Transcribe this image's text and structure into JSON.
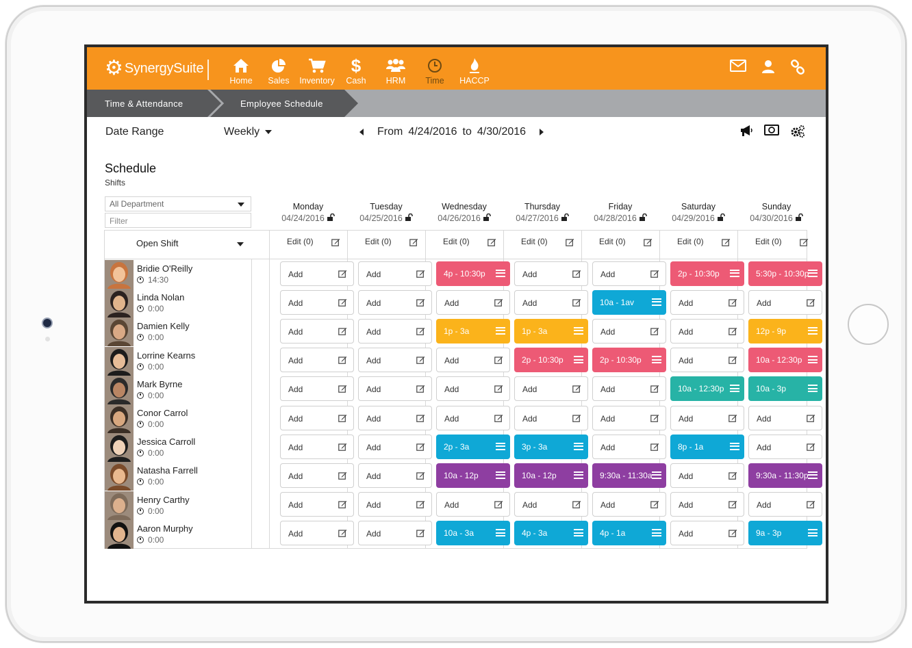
{
  "app": {
    "brand": "SynergySuite",
    "nav": [
      {
        "label": "Home",
        "icon": "home-icon"
      },
      {
        "label": "Sales",
        "icon": "pie-chart-icon"
      },
      {
        "label": "Inventory",
        "icon": "cart-icon"
      },
      {
        "label": "Cash",
        "icon": "dollar-icon"
      },
      {
        "label": "HRM",
        "icon": "users-icon"
      },
      {
        "label": "Time",
        "icon": "clock-icon",
        "active": true
      },
      {
        "label": "HACCP",
        "icon": "flame-icon"
      }
    ],
    "top_right_icons": [
      "mail-icon",
      "user-icon",
      "link-icon"
    ]
  },
  "breadcrumb": [
    "Time & Attendance",
    "Employee Schedule"
  ],
  "toolbar": {
    "date_range_label": "Date Range",
    "range_mode": "Weekly",
    "from_label": "From",
    "from_date": "4/24/2016",
    "to_label": "to",
    "to_date": "4/30/2016",
    "icons": [
      "megaphone-icon",
      "money-icon",
      "settings-icon"
    ]
  },
  "schedule": {
    "title": "Schedule",
    "subtitle": "Shifts",
    "department": "All Department",
    "filter_placeholder": "Filter",
    "open_shift_label": "Open Shift",
    "edit_label": "Edit (0)",
    "add_label": "Add",
    "days": [
      {
        "name": "Monday",
        "date": "04/24/2016"
      },
      {
        "name": "Tuesday",
        "date": "04/25/2016"
      },
      {
        "name": "Wednesday",
        "date": "04/26/2016"
      },
      {
        "name": "Thursday",
        "date": "04/27/2016"
      },
      {
        "name": "Friday",
        "date": "04/28/2016"
      },
      {
        "name": "Saturday",
        "date": "04/29/2016"
      },
      {
        "name": "Sunday",
        "date": "04/30/2016"
      }
    ],
    "colors": {
      "pink": "#ed5a75",
      "yellow": "#fbb31b",
      "blue": "#0fa8d6",
      "teal": "#27b3a6",
      "purple": "#8e3ea1"
    },
    "employees": [
      {
        "name": "Bridie O'Reilly",
        "hours": "14:30",
        "shifts": [
          null,
          null,
          {
            "t": "4p - 10:30p",
            "c": "pink"
          },
          null,
          null,
          {
            "t": "2p - 10:30p",
            "c": "pink"
          },
          {
            "t": "5:30p - 10:30p",
            "c": "pink"
          }
        ]
      },
      {
        "name": "Linda Nolan",
        "hours": "0:00",
        "shifts": [
          null,
          null,
          null,
          null,
          {
            "t": "10a - 1av",
            "c": "blue"
          },
          null,
          null
        ]
      },
      {
        "name": "Damien Kelly",
        "hours": "0:00",
        "shifts": [
          null,
          null,
          {
            "t": "1p - 3a",
            "c": "yellow"
          },
          {
            "t": "1p - 3a",
            "c": "yellow"
          },
          null,
          null,
          {
            "t": "12p - 9p",
            "c": "yellow"
          }
        ]
      },
      {
        "name": "Lorrine Kearns",
        "hours": "0:00",
        "shifts": [
          null,
          null,
          null,
          {
            "t": "2p - 10:30p",
            "c": "pink"
          },
          {
            "t": "2p - 10:30p",
            "c": "pink"
          },
          null,
          {
            "t": "10a - 12:30p",
            "c": "pink"
          }
        ]
      },
      {
        "name": "Mark Byrne",
        "hours": "0:00",
        "shifts": [
          null,
          null,
          null,
          null,
          null,
          {
            "t": "10a - 12:30p",
            "c": "teal"
          },
          {
            "t": "10a - 3p",
            "c": "teal"
          }
        ]
      },
      {
        "name": "Conor Carrol",
        "hours": "0:00",
        "shifts": [
          null,
          null,
          null,
          null,
          null,
          null,
          null
        ]
      },
      {
        "name": "Jessica Carroll",
        "hours": "0:00",
        "shifts": [
          null,
          null,
          {
            "t": "2p - 3a",
            "c": "blue"
          },
          {
            "t": "3p - 3a",
            "c": "blue"
          },
          null,
          {
            "t": "8p - 1a",
            "c": "blue"
          },
          null
        ]
      },
      {
        "name": "Natasha Farrell",
        "hours": "0:00",
        "shifts": [
          null,
          null,
          {
            "t": "10a - 12p",
            "c": "purple"
          },
          {
            "t": "10a - 12p",
            "c": "purple"
          },
          {
            "t": "9:30a - 11:30a",
            "c": "purple"
          },
          null,
          {
            "t": "9:30a - 11:30p",
            "c": "purple"
          }
        ]
      },
      {
        "name": "Henry Carthy",
        "hours": "0:00",
        "shifts": [
          null,
          null,
          null,
          null,
          null,
          null,
          null
        ]
      },
      {
        "name": "Aaron Murphy",
        "hours": "0:00",
        "shifts": [
          null,
          null,
          {
            "t": "10a - 3a",
            "c": "blue"
          },
          {
            "t": "4p - 3a",
            "c": "blue"
          },
          {
            "t": "4p - 1a",
            "c": "blue"
          },
          null,
          {
            "t": "9a - 3p",
            "c": "blue"
          }
        ]
      }
    ]
  }
}
